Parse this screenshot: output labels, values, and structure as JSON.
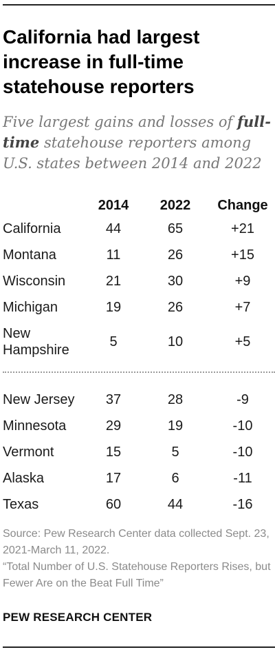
{
  "title": "California had largest increase in full-time statehouse reporters",
  "subtitle": {
    "part1": "Five largest gains and losses of ",
    "emphasis": "full-time",
    "part2": " statehouse reporters among U.S. states between 2014 and 2022"
  },
  "source": {
    "line1": "Source: Pew Research Center data collected Sept. 23, 2021-March 11, 2022.",
    "line2": "“Total Number of U.S. Statehouse Reporters Rises, but Fewer Are on the Beat Full Time”"
  },
  "brand": "PEW RESEARCH CENTER",
  "chart_data": {
    "type": "table",
    "columns": [
      "2014",
      "2022",
      "Change"
    ],
    "gains": [
      {
        "state": "California",
        "y2014": "44",
        "y2022": "65",
        "change": "+21"
      },
      {
        "state": "Montana",
        "y2014": "11",
        "y2022": "26",
        "change": "+15"
      },
      {
        "state": "Wisconsin",
        "y2014": "21",
        "y2022": "30",
        "change": "+9"
      },
      {
        "state": "Michigan",
        "y2014": "19",
        "y2022": "26",
        "change": "+7"
      },
      {
        "state": "New Hampshire",
        "y2014": "5",
        "y2022": "10",
        "change": "+5"
      }
    ],
    "losses": [
      {
        "state": "New Jersey",
        "y2014": "37",
        "y2022": "28",
        "change": "-9"
      },
      {
        "state": "Minnesota",
        "y2014": "29",
        "y2022": "19",
        "change": "-10"
      },
      {
        "state": "Vermont",
        "y2014": "15",
        "y2022": "5",
        "change": "-10"
      },
      {
        "state": "Alaska",
        "y2014": "17",
        "y2022": "6",
        "change": "-11"
      },
      {
        "state": "Texas",
        "y2014": "60",
        "y2022": "44",
        "change": "-16"
      }
    ]
  }
}
